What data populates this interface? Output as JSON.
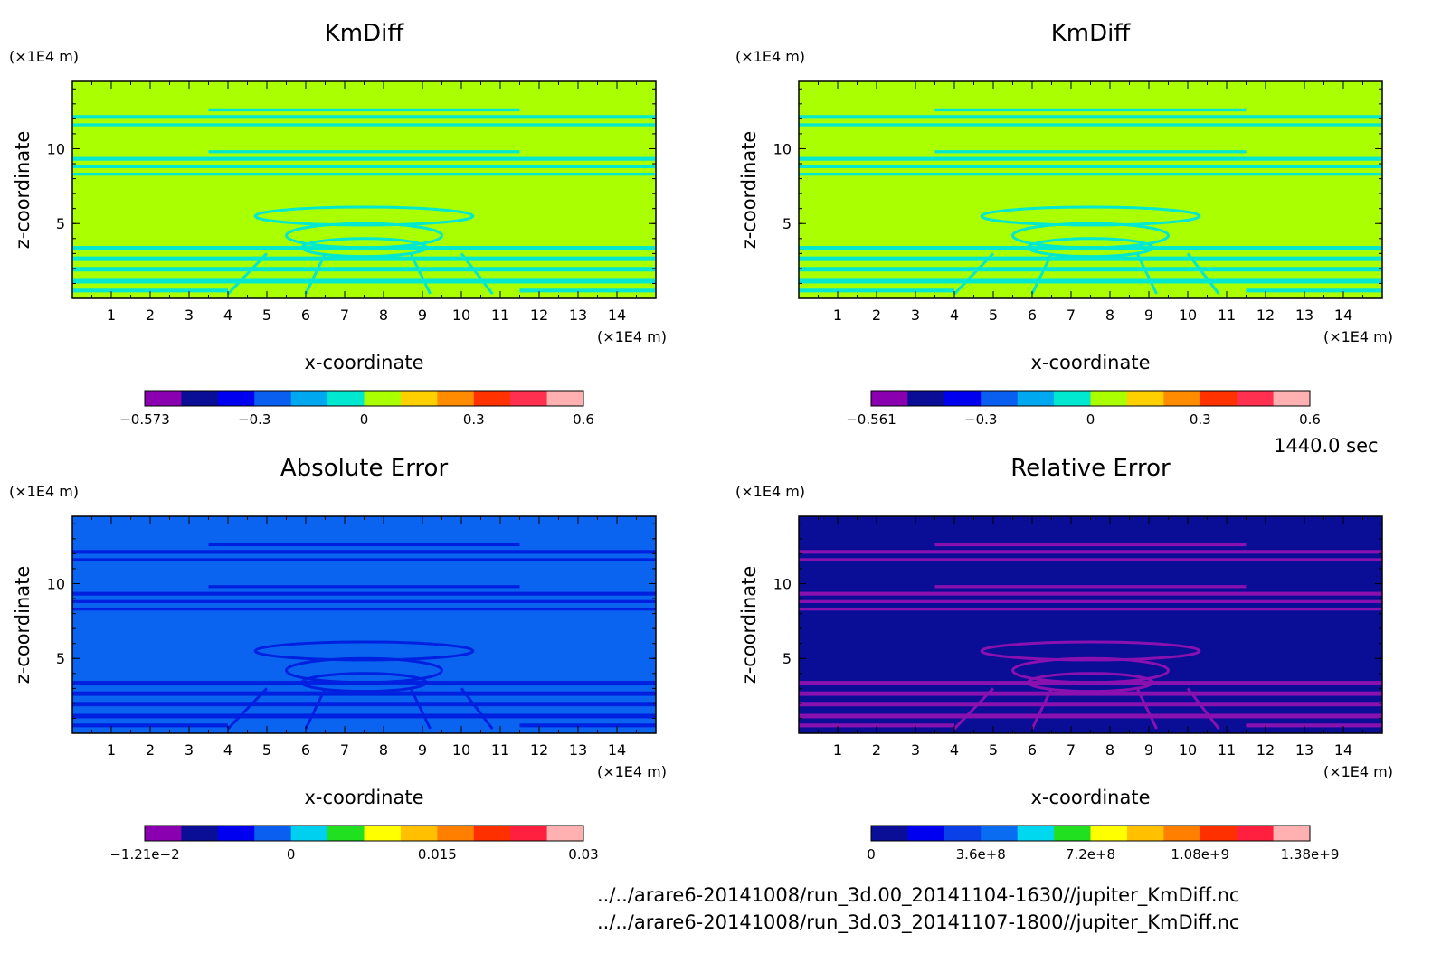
{
  "chart_data": [
    {
      "type": "heatmap",
      "title": "KmDiff",
      "xlabel": "x-coordinate",
      "ylabel": "z-coordinate",
      "x_unit": "(×1E4 m)",
      "y_unit": "(×1E4 m)",
      "xlim": [
        0,
        15
      ],
      "ylim": [
        0,
        14.5
      ],
      "x_ticks": [
        "1",
        "2",
        "3",
        "4",
        "5",
        "6",
        "7",
        "8",
        "9",
        "10",
        "11",
        "12",
        "13",
        "14"
      ],
      "y_ticks": [
        "5",
        "10"
      ],
      "colorbar": {
        "colors": [
          "#8a00b0",
          "#0a0e96",
          "#0000f0",
          "#0a5ef0",
          "#00a8f0",
          "#00e8d0",
          "#aaff00",
          "#ffd000",
          "#ff8c00",
          "#ff3200",
          "#ff3050",
          "#ffb0b0"
        ],
        "ticks": [
          "−0.573",
          "−0.3",
          "0",
          "0.3",
          "0.6"
        ]
      },
      "background_color": "#aaff00",
      "feature_color": "#00e8d0"
    },
    {
      "type": "heatmap",
      "title": "KmDiff",
      "xlabel": "x-coordinate",
      "ylabel": "z-coordinate",
      "x_unit": "(×1E4 m)",
      "y_unit": "(×1E4 m)",
      "xlim": [
        0,
        15
      ],
      "ylim": [
        0,
        14.5
      ],
      "x_ticks": [
        "1",
        "2",
        "3",
        "4",
        "5",
        "6",
        "7",
        "8",
        "9",
        "10",
        "11",
        "12",
        "13",
        "14"
      ],
      "y_ticks": [
        "5",
        "10"
      ],
      "colorbar": {
        "colors": [
          "#8a00b0",
          "#0a0e96",
          "#0000f0",
          "#0a5ef0",
          "#00a8f0",
          "#00e8d0",
          "#aaff00",
          "#ffd000",
          "#ff8c00",
          "#ff3200",
          "#ff3050",
          "#ffb0b0"
        ],
        "ticks": [
          "−0.561",
          "−0.3",
          "0",
          "0.3",
          "0.6"
        ]
      },
      "background_color": "#aaff00",
      "feature_color": "#00e8d0"
    },
    {
      "type": "heatmap",
      "title": "Absolute Error",
      "xlabel": "x-coordinate",
      "ylabel": "z-coordinate",
      "x_unit": "(×1E4 m)",
      "y_unit": "(×1E4 m)",
      "xlim": [
        0,
        15
      ],
      "ylim": [
        0,
        14.5
      ],
      "x_ticks": [
        "1",
        "2",
        "3",
        "4",
        "5",
        "6",
        "7",
        "8",
        "9",
        "10",
        "11",
        "12",
        "13",
        "14"
      ],
      "y_ticks": [
        "5",
        "10"
      ],
      "colorbar": {
        "colors": [
          "#8a00b0",
          "#0a0e96",
          "#0000f0",
          "#0a5ef0",
          "#00d0f0",
          "#20e020",
          "#ffff00",
          "#ffc000",
          "#ff8000",
          "#ff3000",
          "#ff2040",
          "#ffb0b0"
        ],
        "ticks": [
          "−1.21e−2",
          "0",
          "0.015",
          "0.03"
        ]
      },
      "background_color": "#0a64f0",
      "feature_color": "#0020e0"
    },
    {
      "type": "heatmap",
      "title": "Relative Error",
      "xlabel": "x-coordinate",
      "ylabel": "z-coordinate",
      "x_unit": "(×1E4 m)",
      "y_unit": "(×1E4 m)",
      "xlim": [
        0,
        15
      ],
      "ylim": [
        0,
        14.5
      ],
      "x_ticks": [
        "1",
        "2",
        "3",
        "4",
        "5",
        "6",
        "7",
        "8",
        "9",
        "10",
        "11",
        "12",
        "13",
        "14"
      ],
      "y_ticks": [
        "5",
        "10"
      ],
      "colorbar": {
        "colors": [
          "#0a0e96",
          "#0000f0",
          "#0a40e8",
          "#0a6cf0",
          "#00d8f0",
          "#20e020",
          "#ffff00",
          "#ffc000",
          "#ff8000",
          "#ff3000",
          "#ff2040",
          "#ffb0b0"
        ],
        "ticks": [
          "0",
          "3.6e+8",
          "7.2e+8",
          "1.08e+9",
          "1.38e+9"
        ]
      },
      "background_color": "#0a0e96",
      "feature_color": "#8a10b0"
    }
  ],
  "annotations": {
    "time": "1440.0 sec",
    "file1": "../../arare6-20141008/run_3d.00_20141104-1630//jupiter_KmDiff.nc",
    "file2": "../../arare6-20141008/run_3d.03_20141107-1800//jupiter_KmDiff.nc"
  }
}
